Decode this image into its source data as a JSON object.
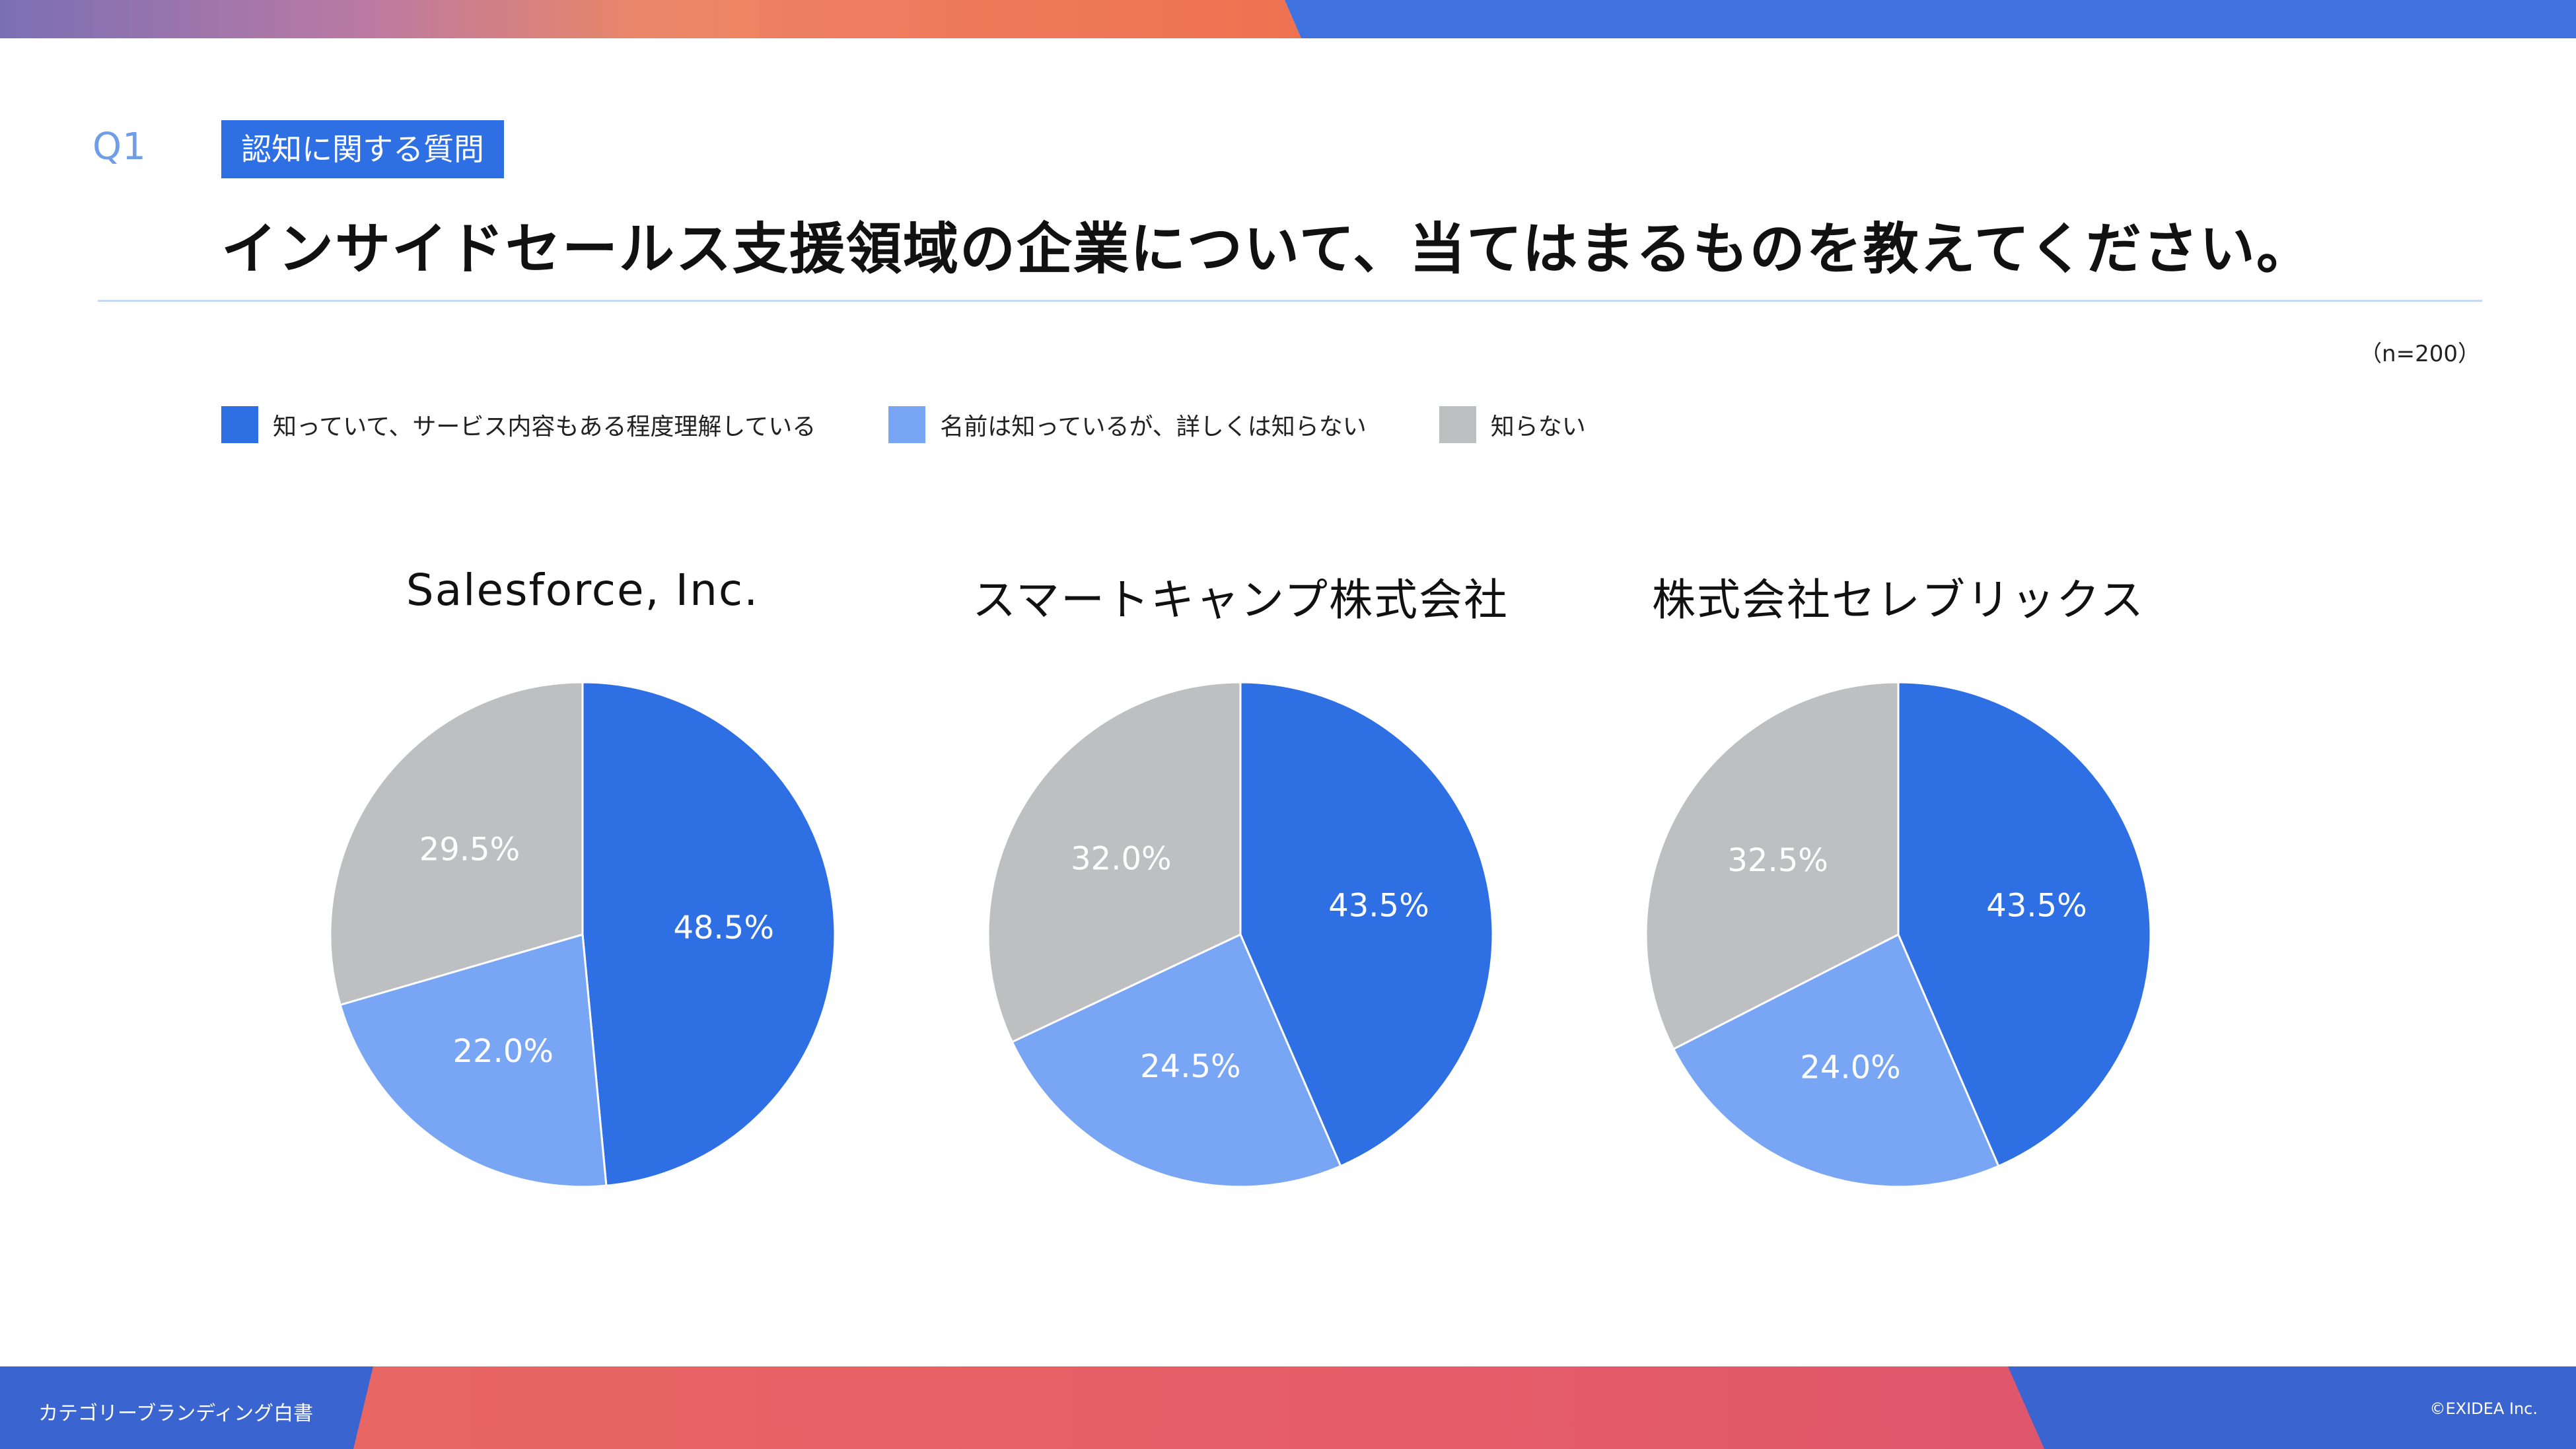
{
  "question": {
    "number": "Q1",
    "category_tag": "認知に関する質問",
    "title": "インサイドセールス支援領域の企業について、当てはまるものを教えてください。",
    "sample_size": "（n=200）"
  },
  "legend": [
    {
      "label": "知っていて、サービス内容もある程度理解している",
      "color": "#2f6fe4"
    },
    {
      "label": "名前は知っているが、詳しくは知らない",
      "color": "#78a6f5"
    },
    {
      "label": "知らない",
      "color": "#bebfc1"
    }
  ],
  "chart_data": [
    {
      "type": "pie",
      "title": "Salesforce, Inc.",
      "categories": [
        "知っていて、サービス内容もある程度理解している",
        "名前は知っているが、詳しくは知らない",
        "知らない"
      ],
      "values": [
        48.5,
        22.0,
        29.5
      ],
      "labels": [
        "48.5%",
        "22.0%",
        "29.5%"
      ],
      "colors": [
        "#2f6fe4",
        "#78a6f5",
        "#bebfc1"
      ]
    },
    {
      "type": "pie",
      "title": "スマートキャンプ株式会社",
      "categories": [
        "知っていて、サービス内容もある程度理解している",
        "名前は知っているが、詳しくは知らない",
        "知らない"
      ],
      "values": [
        43.5,
        24.5,
        32.0
      ],
      "labels": [
        "43.5%",
        "24.5%",
        "32.0%"
      ],
      "colors": [
        "#2f6fe4",
        "#78a6f5",
        "#bebfc1"
      ]
    },
    {
      "type": "pie",
      "title": "株式会社セレブリックス",
      "categories": [
        "知っていて、サービス内容もある程度理解している",
        "名前は知っているが、詳しくは知らない",
        "知らない"
      ],
      "values": [
        43.5,
        24.0,
        32.5
      ],
      "labels": [
        "43.5%",
        "24.0%",
        "32.5%"
      ],
      "colors": [
        "#2f6fe4",
        "#78a6f5",
        "#bebfc1"
      ]
    }
  ],
  "footer": {
    "left": "カテゴリーブランディング白書",
    "right": "©EXIDEA Inc."
  }
}
